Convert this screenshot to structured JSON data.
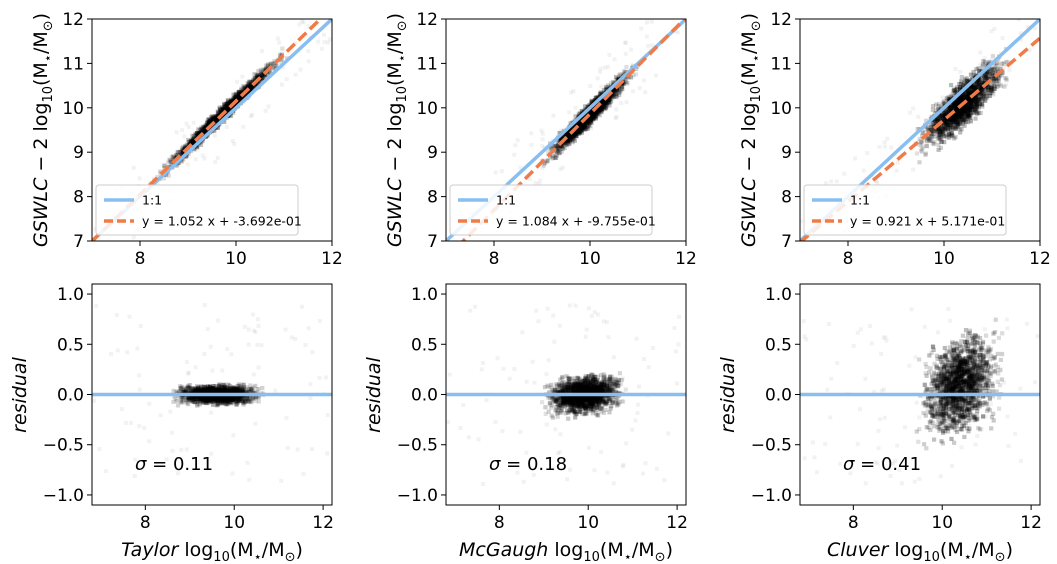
{
  "colors": {
    "identity": "#88bff0",
    "fit": "#f07b47",
    "density": "#000000",
    "frame": "#000000"
  },
  "top_ylabel": {
    "pre": "GSWLC",
    "mid": " − 2 log",
    "sub": "10",
    "post": "(M",
    "star": "⋆",
    "slash": "/M",
    "sun": "⊙",
    "close": ")"
  },
  "bottom_ylabel": "residual",
  "bottom_xlabel": {
    "mid": " log",
    "sub": "10",
    "post": "(M",
    "star": "⋆",
    "slash": "/M",
    "sun": "⊙",
    "close": ")"
  },
  "chart_data": [
    {
      "type": "scatter",
      "panel": "top-left",
      "x_range": [
        7,
        12
      ],
      "y_range": [
        7,
        12
      ],
      "x_ticks": [
        8,
        10,
        12
      ],
      "y_ticks": [
        7,
        8,
        9,
        10,
        11,
        12
      ],
      "ylabel": "GSWLC − 2 log10(M⋆/M⊙)",
      "legend_position": "lower-right",
      "series": [
        {
          "name": "1:1",
          "kind": "line",
          "slope": 1,
          "intercept": 0,
          "style": "solid",
          "color": "#88bff0"
        },
        {
          "name": "y = 1.052 x + -3.692e-01",
          "kind": "line",
          "slope": 1.052,
          "intercept": -0.3692,
          "style": "dashed",
          "color": "#f07b47"
        }
      ],
      "density": {
        "x_range": [
          7.8,
          11.4
        ],
        "center": 9.7,
        "spread_x": 0.85,
        "scatter_y": 0.1
      }
    },
    {
      "type": "scatter",
      "panel": "top-middle",
      "x_range": [
        7,
        12
      ],
      "y_range": [
        7,
        12
      ],
      "x_ticks": [
        8,
        10,
        12
      ],
      "y_ticks": [
        7,
        8,
        9,
        10,
        11,
        12
      ],
      "ylabel": "GSWLC − 2 log10(M⋆/M⊙)",
      "legend_position": "lower-right",
      "series": [
        {
          "name": "1:1",
          "kind": "line",
          "slope": 1,
          "intercept": 0,
          "style": "solid",
          "color": "#88bff0"
        },
        {
          "name": "y = 1.084 x + -9.755e-01",
          "kind": "line",
          "slope": 1.084,
          "intercept": -0.9755,
          "style": "dashed",
          "color": "#f07b47"
        }
      ],
      "density": {
        "x_range": [
          8.6,
          11.5
        ],
        "center": 10.0,
        "spread_x": 0.6,
        "scatter_y": 0.13
      }
    },
    {
      "type": "scatter",
      "panel": "top-right",
      "x_range": [
        7,
        12
      ],
      "y_range": [
        7,
        12
      ],
      "x_ticks": [
        8,
        10,
        12
      ],
      "y_ticks": [
        7,
        8,
        9,
        10,
        11,
        12
      ],
      "ylabel": "GSWLC − 2 log10(M⋆/M⊙)",
      "legend_position": "lower-right",
      "series": [
        {
          "name": "1:1",
          "kind": "line",
          "slope": 1,
          "intercept": 0,
          "style": "solid",
          "color": "#88bff0"
        },
        {
          "name": "y = 0.921 x + 5.171e-01",
          "kind": "line",
          "slope": 0.921,
          "intercept": 0.5171,
          "style": "dashed",
          "color": "#f07b47"
        }
      ],
      "density": {
        "x_range": [
          8.4,
          11.9
        ],
        "center": 10.4,
        "spread_x": 0.6,
        "scatter_y": 0.28
      }
    },
    {
      "type": "scatter",
      "panel": "bottom-left",
      "x_range": [
        6.8,
        12.2
      ],
      "y_range": [
        -1.1,
        1.1
      ],
      "x_ticks": [
        8,
        10,
        12
      ],
      "y_ticks": [
        -1.0,
        -0.5,
        0.0,
        0.5,
        1.0
      ],
      "ylabel": "residual",
      "xlabel": "Taylor log10(M⋆/M⊙)",
      "xlabel_name": "Taylor",
      "annotation": "σ = 0.11",
      "sigma_label": "σ",
      "sigma_value": "0.11",
      "series": [
        {
          "name": "zero",
          "kind": "hline",
          "y": 0,
          "color": "#88bff0"
        }
      ],
      "density": {
        "x_range": [
          8.4,
          11.0
        ],
        "center": 9.6,
        "spread_x": 0.65,
        "scatter_y": 0.05
      }
    },
    {
      "type": "scatter",
      "panel": "bottom-middle",
      "x_range": [
        6.8,
        12.2
      ],
      "y_range": [
        -1.1,
        1.1
      ],
      "x_ticks": [
        8,
        10,
        12
      ],
      "y_ticks": [
        -1.0,
        -0.5,
        0.0,
        0.5,
        1.0
      ],
      "ylabel": "residual",
      "xlabel": "McGaugh log10(M⋆/M⊙)",
      "xlabel_name": "McGaugh",
      "annotation": "σ = 0.18",
      "sigma_label": "σ",
      "sigma_value": "0.18",
      "series": [
        {
          "name": "zero",
          "kind": "hline",
          "y": 0,
          "color": "#88bff0"
        }
      ],
      "density": {
        "x_range": [
          8.6,
          11.4
        ],
        "center": 9.9,
        "spread_x": 0.6,
        "scatter_y": 0.1
      }
    },
    {
      "type": "scatter",
      "panel": "bottom-right",
      "x_range": [
        6.8,
        12.2
      ],
      "y_range": [
        -1.1,
        1.1
      ],
      "x_ticks": [
        8,
        10,
        12
      ],
      "y_ticks": [
        -1.0,
        -0.5,
        0.0,
        0.5,
        1.0
      ],
      "ylabel": "residual",
      "xlabel": "Cluver log10(M⋆/M⊙)",
      "xlabel_name": "Cluver",
      "annotation": "σ = 0.41",
      "sigma_label": "σ",
      "sigma_value": "0.41",
      "series": [
        {
          "name": "zero",
          "kind": "hline",
          "y": 0,
          "color": "#88bff0"
        }
      ],
      "density": {
        "x_range": [
          8.4,
          11.8
        ],
        "center": 10.4,
        "spread_x": 0.6,
        "scatter_y": 0.25
      }
    }
  ]
}
